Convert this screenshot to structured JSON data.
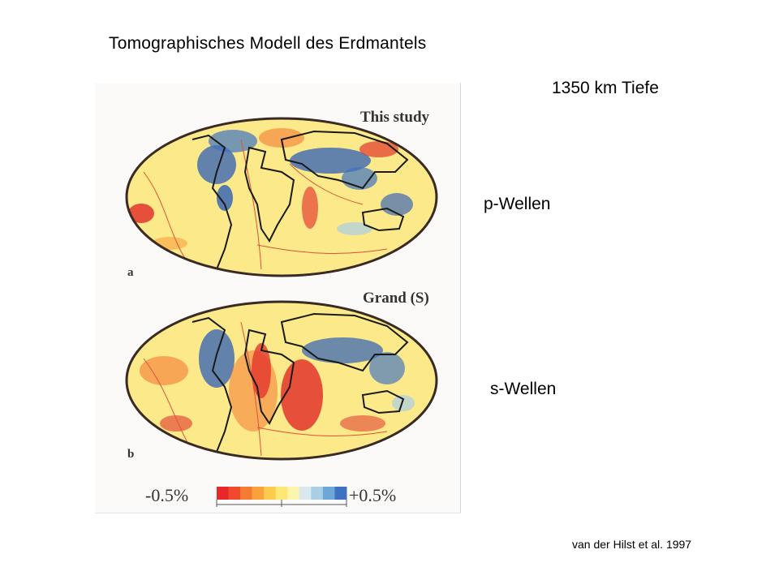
{
  "slide": {
    "title": "Tomographisches Modell des Erdmantels",
    "depth": "1350 km Tiefe",
    "p_label": "p-Wellen",
    "s_label": "s-Wellen",
    "citation": "van der Hilst et al. 1997"
  },
  "figure": {
    "panel_a": {
      "title": "This study",
      "letter": "a"
    },
    "panel_b": {
      "title": "Grand (S)",
      "letter": "b"
    },
    "colorbar": {
      "min_label": "-0.5%",
      "max_label": "+0.5%",
      "colors": [
        "#e8262b",
        "#ef4a2b",
        "#f57a33",
        "#f9a23c",
        "#fbcb4d",
        "#fde875",
        "#fdf4b0",
        "#d8e8ec",
        "#a9cfe6",
        "#6ea6d6",
        "#3e72c0"
      ]
    },
    "colors": {
      "background_yellow": "#fbe98a",
      "fast_blue": "#2f5fb7",
      "slow_red": "#e2352c",
      "plate_boundary": "#d9553a",
      "coastline": "#1a1a1a"
    }
  }
}
